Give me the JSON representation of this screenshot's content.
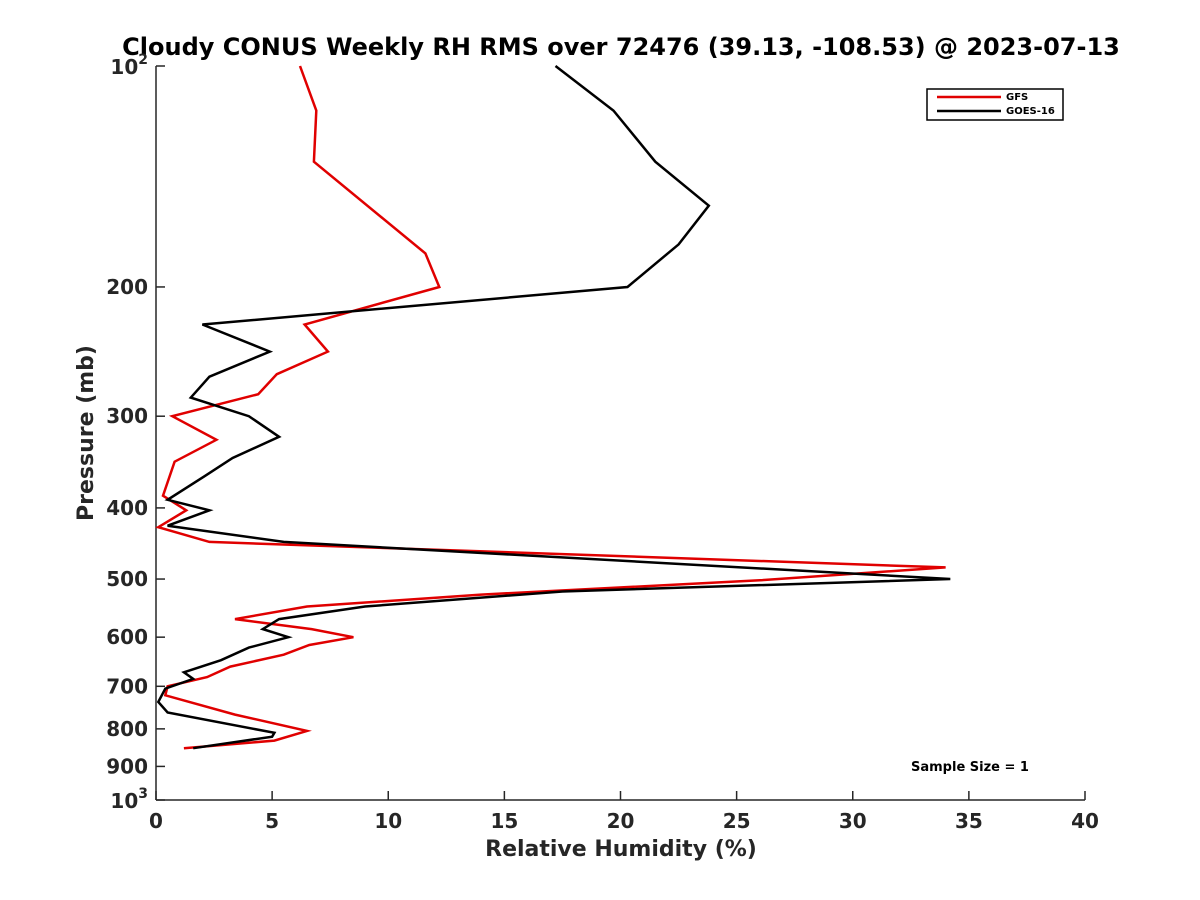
{
  "chart_data": {
    "type": "line",
    "title": "Cloudy CONUS Weekly RH RMS over 72476 (39.13, -108.53) @ 2023-07-13",
    "xlabel": "Relative Humidity (%)",
    "ylabel": "Pressure (mb)",
    "xlim": [
      0,
      40
    ],
    "ylim": [
      100,
      1000
    ],
    "y_scale": "log",
    "y_reversed": true,
    "x_ticks": [
      {
        "value": 0,
        "label": "0"
      },
      {
        "value": 5,
        "label": "5"
      },
      {
        "value": 10,
        "label": "10"
      },
      {
        "value": 15,
        "label": "15"
      },
      {
        "value": 20,
        "label": "20"
      },
      {
        "value": 25,
        "label": "25"
      },
      {
        "value": 30,
        "label": "30"
      },
      {
        "value": 35,
        "label": "35"
      },
      {
        "value": 40,
        "label": "40"
      }
    ],
    "y_ticks": [
      {
        "value": 100,
        "base": "10",
        "exp": "2"
      },
      {
        "value": 200,
        "label": "200"
      },
      {
        "value": 300,
        "label": "300"
      },
      {
        "value": 400,
        "label": "400"
      },
      {
        "value": 500,
        "label": "500"
      },
      {
        "value": 600,
        "label": "600"
      },
      {
        "value": 700,
        "label": "700"
      },
      {
        "value": 800,
        "label": "800"
      },
      {
        "value": 900,
        "label": "900"
      },
      {
        "value": 1000,
        "base": "10",
        "exp": "3"
      }
    ],
    "grid": false,
    "legend_position": "top-right",
    "series": [
      {
        "name": "GFS",
        "color": "#e00000",
        "points": [
          {
            "x": 6.2,
            "y": 100
          },
          {
            "x": 6.9,
            "y": 115
          },
          {
            "x": 6.8,
            "y": 135
          },
          {
            "x": 11.6,
            "y": 180
          },
          {
            "x": 12.2,
            "y": 200
          },
          {
            "x": 6.4,
            "y": 225
          },
          {
            "x": 7.4,
            "y": 245
          },
          {
            "x": 5.2,
            "y": 263
          },
          {
            "x": 4.4,
            "y": 280
          },
          {
            "x": 0.7,
            "y": 300
          },
          {
            "x": 2.6,
            "y": 323
          },
          {
            "x": 0.8,
            "y": 346
          },
          {
            "x": 0.3,
            "y": 385
          },
          {
            "x": 1.3,
            "y": 403
          },
          {
            "x": 0.1,
            "y": 425
          },
          {
            "x": 2.3,
            "y": 445
          },
          {
            "x": 34.0,
            "y": 482
          },
          {
            "x": 26.0,
            "y": 502
          },
          {
            "x": 14.0,
            "y": 525
          },
          {
            "x": 6.5,
            "y": 545
          },
          {
            "x": 3.4,
            "y": 567
          },
          {
            "x": 6.7,
            "y": 585
          },
          {
            "x": 8.5,
            "y": 600
          },
          {
            "x": 6.6,
            "y": 615
          },
          {
            "x": 5.5,
            "y": 634
          },
          {
            "x": 3.2,
            "y": 658
          },
          {
            "x": 2.2,
            "y": 680
          },
          {
            "x": 0.5,
            "y": 700
          },
          {
            "x": 0.4,
            "y": 720
          },
          {
            "x": 3.4,
            "y": 765
          },
          {
            "x": 6.5,
            "y": 805
          },
          {
            "x": 5.1,
            "y": 830
          },
          {
            "x": 1.2,
            "y": 850
          }
        ]
      },
      {
        "name": "GOES-16",
        "color": "#000000",
        "points": [
          {
            "x": 17.2,
            "y": 100
          },
          {
            "x": 19.7,
            "y": 115
          },
          {
            "x": 21.5,
            "y": 135
          },
          {
            "x": 23.8,
            "y": 155
          },
          {
            "x": 22.5,
            "y": 175
          },
          {
            "x": 20.3,
            "y": 200
          },
          {
            "x": 2.0,
            "y": 225
          },
          {
            "x": 4.9,
            "y": 245
          },
          {
            "x": 2.3,
            "y": 265
          },
          {
            "x": 1.5,
            "y": 283
          },
          {
            "x": 4.0,
            "y": 300
          },
          {
            "x": 5.3,
            "y": 320
          },
          {
            "x": 3.3,
            "y": 342
          },
          {
            "x": 2.1,
            "y": 362
          },
          {
            "x": 0.5,
            "y": 390
          },
          {
            "x": 2.3,
            "y": 403
          },
          {
            "x": 0.5,
            "y": 423
          },
          {
            "x": 5.5,
            "y": 445
          },
          {
            "x": 34.2,
            "y": 500
          },
          {
            "x": 17.5,
            "y": 520
          },
          {
            "x": 9.0,
            "y": 545
          },
          {
            "x": 5.3,
            "y": 567
          },
          {
            "x": 4.6,
            "y": 585
          },
          {
            "x": 5.7,
            "y": 600
          },
          {
            "x": 4.0,
            "y": 620
          },
          {
            "x": 2.8,
            "y": 645
          },
          {
            "x": 1.2,
            "y": 670
          },
          {
            "x": 1.6,
            "y": 684
          },
          {
            "x": 0.4,
            "y": 705
          },
          {
            "x": 0.1,
            "y": 735
          },
          {
            "x": 0.5,
            "y": 760
          },
          {
            "x": 5.1,
            "y": 810
          },
          {
            "x": 5.0,
            "y": 820
          },
          {
            "x": 1.6,
            "y": 850
          }
        ]
      }
    ],
    "annotations": [
      "Sample Size = 1"
    ]
  }
}
